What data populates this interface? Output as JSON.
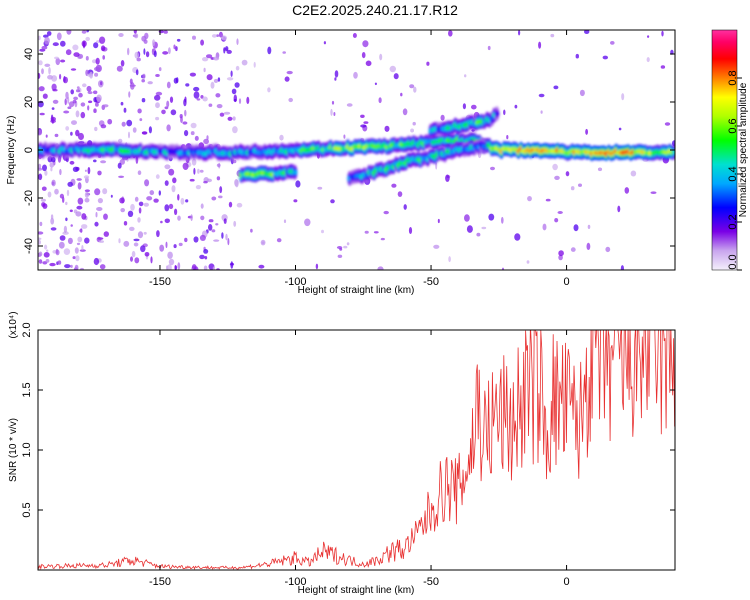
{
  "title": "C2E2.2025.240.21.17.R12",
  "colors": {
    "snr_line": "#e83030",
    "spectro_background": "#ffffff"
  },
  "chart_data": [
    {
      "type": "heatmap",
      "xlabel": "Height of straight line (km)",
      "ylabel": "Frequency (Hz)",
      "xlim": [
        -195,
        40
      ],
      "ylim": [
        -50,
        50
      ],
      "x_ticks": [
        -150,
        -100,
        -50,
        0
      ],
      "y_ticks": [
        -40,
        -20,
        0,
        20,
        40
      ],
      "grid": false,
      "colorbar": {
        "label": "Normalized spectral amplitude",
        "range": [
          0,
          1
        ],
        "ticks": [
          0.0,
          0.2,
          0.4,
          0.6,
          0.8
        ]
      },
      "ridges": [
        {
          "x": [
            -195,
            -170,
            -140,
            -120,
            -100,
            -80,
            -60,
            -45,
            -35,
            -25,
            -10,
            0,
            10,
            20,
            40
          ],
          "y": [
            0,
            0,
            -1,
            -1,
            0,
            1,
            2,
            4,
            4,
            0,
            0,
            -1,
            -1,
            -1,
            -1
          ],
          "amplitude": [
            0.3,
            0.45,
            0.35,
            0.4,
            0.45,
            0.6,
            0.5,
            0.45,
            0.5,
            0.65,
            0.8,
            0.7,
            0.75,
            0.8,
            0.55
          ]
        },
        {
          "x": [
            -120,
            -110,
            -100
          ],
          "y": [
            -10,
            -10,
            -9
          ],
          "amplitude": [
            0.5,
            0.55,
            0.4
          ]
        },
        {
          "x": [
            -80,
            -70,
            -60,
            -50,
            -40,
            -30
          ],
          "y": [
            -12,
            -9,
            -5,
            -3,
            0,
            2
          ],
          "amplitude": [
            0.35,
            0.45,
            0.5,
            0.45,
            0.4,
            0.35
          ]
        },
        {
          "x": [
            -50,
            -40,
            -30,
            -25
          ],
          "y": [
            8,
            10,
            12,
            15
          ],
          "amplitude": [
            0.35,
            0.45,
            0.5,
            0.3
          ]
        }
      ]
    },
    {
      "type": "line",
      "xlabel": "Height of straight line (km)",
      "ylabel": "SNR (10 * v/v)",
      "scale_label": "(x10⁴)",
      "xlim": [
        -195,
        40
      ],
      "ylim": [
        0,
        2.0
      ],
      "x_ticks": [
        -150,
        -100,
        -50,
        0
      ],
      "y_ticks": [
        0.5,
        1.0,
        1.5,
        2.0
      ],
      "grid": false,
      "series": [
        {
          "x": [
            -195,
            -170,
            -160,
            -150,
            -130,
            -120,
            -110,
            -100,
            -95,
            -90,
            -85,
            -80,
            -75,
            -70,
            -65,
            -60,
            -55,
            -50,
            -45,
            -40,
            -35,
            -33,
            -30,
            -25,
            -20,
            -15,
            -10,
            -8,
            -5,
            0,
            5,
            8,
            10,
            12,
            15,
            20,
            25,
            30,
            35,
            40
          ],
          "y": [
            0.03,
            0.04,
            0.08,
            0.03,
            0.02,
            0.02,
            0.05,
            0.1,
            0.06,
            0.15,
            0.12,
            0.08,
            0.05,
            0.08,
            0.15,
            0.18,
            0.3,
            0.5,
            0.7,
            0.65,
            1.0,
            1.4,
            1.1,
            1.3,
            1.2,
            1.5,
            1.55,
            1.1,
            1.4,
            1.35,
            1.2,
            1.7,
            2.0,
            1.8,
            1.75,
            1.7,
            1.85,
            1.9,
            1.85,
            1.8
          ]
        }
      ]
    }
  ]
}
